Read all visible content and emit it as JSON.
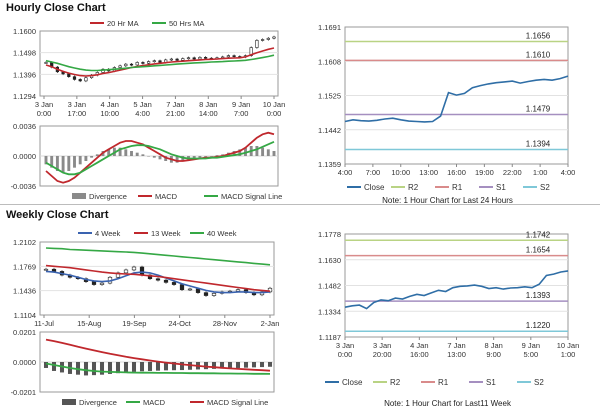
{
  "hourly": {
    "title": "Hourly Close Chart",
    "price_panel": {
      "type": "candlestick",
      "legend": [
        {
          "name": "20 Hr MA",
          "color": "#c0282d"
        },
        {
          "name": "50 Hrs MA",
          "color": "#35a845"
        }
      ],
      "ylim": [
        1.1294,
        1.16
      ],
      "y_ticks": [
        "1.1600",
        "1.1498",
        "1.1396",
        "1.1294"
      ],
      "x_ticks": [
        [
          "3 Jan",
          "0:00"
        ],
        [
          "3 Jan",
          "17:00"
        ],
        [
          "4 Jan",
          "10:00"
        ],
        [
          "5 Jan",
          "4:00"
        ],
        [
          "7 Jan",
          "21:00"
        ],
        [
          "8 Jan",
          "14:00"
        ],
        [
          "9 Jan",
          "7:00"
        ],
        [
          "10 Jan",
          "0:00"
        ]
      ],
      "close": [
        1.1452,
        1.143,
        1.1408,
        1.1398,
        1.1385,
        1.1372,
        1.1365,
        1.138,
        1.1392,
        1.1405,
        1.142,
        1.1412,
        1.1428,
        1.1436,
        1.1444,
        1.144,
        1.1452,
        1.1448,
        1.1456,
        1.146,
        1.1452,
        1.1464,
        1.1468,
        1.1462,
        1.147,
        1.1474,
        1.1468,
        1.1476,
        1.1472,
        1.147,
        1.1474,
        1.1478,
        1.1484,
        1.148,
        1.1478,
        1.1484,
        1.1522,
        1.1556,
        1.156,
        1.1566,
        1.1572
      ],
      "ma20": [
        1.144,
        1.1432,
        1.142,
        1.141,
        1.1402,
        1.1395,
        1.139,
        1.1388,
        1.139,
        1.1394,
        1.14,
        1.1404,
        1.141,
        1.1416,
        1.1422,
        1.1428,
        1.1433,
        1.1437,
        1.1441,
        1.1445,
        1.1448,
        1.1451,
        1.1454,
        1.1456,
        1.1458,
        1.146,
        1.1462,
        1.1464,
        1.1466,
        1.1467,
        1.1468,
        1.147,
        1.1472,
        1.1473,
        1.1474,
        1.1478,
        1.1488,
        1.1498,
        1.1506,
        1.1514,
        1.152
      ],
      "ma50": [
        1.146,
        1.1454,
        1.1448,
        1.144,
        1.1432,
        1.1426,
        1.142,
        1.1416,
        1.1414,
        1.1414,
        1.1416,
        1.1418,
        1.142,
        1.1422,
        1.1425,
        1.1428,
        1.143,
        1.1432,
        1.1434,
        1.1436,
        1.1438,
        1.144,
        1.1442,
        1.1444,
        1.1446,
        1.1448,
        1.145,
        1.1451,
        1.1452,
        1.1454,
        1.1455,
        1.1456,
        1.1458,
        1.1459,
        1.146,
        1.1462,
        1.1466,
        1.147,
        1.1475,
        1.148,
        1.1486
      ]
    },
    "macd_panel": {
      "ylim": [
        -0.0036,
        0.0036
      ],
      "y_ticks": [
        "0.0036",
        "0.0000",
        "-0.0036"
      ],
      "legend": [
        {
          "name": "Divergence",
          "color": "#8a8a8a"
        },
        {
          "name": "MACD",
          "color": "#c0282d"
        },
        {
          "name": "MACD Signal Line",
          "color": "#35a845"
        }
      ],
      "divergence": [
        -0.001,
        -0.0014,
        -0.0018,
        -0.002,
        -0.0018,
        -0.0014,
        -0.001,
        -0.0006,
        -0.0002,
        0.0002,
        0.0006,
        0.0008,
        0.001,
        0.001,
        0.0008,
        0.0006,
        0.0004,
        0.0002,
        0.0,
        -0.0002,
        -0.0004,
        -0.0006,
        -0.0008,
        -0.0008,
        -0.0006,
        -0.0004,
        -0.0003,
        -0.0002,
        -0.0001,
        0.0,
        0.0001,
        0.0002,
        0.0004,
        0.0006,
        0.0008,
        0.001,
        0.0012,
        0.0012,
        0.001,
        0.0008,
        0.0006
      ],
      "macd": [
        -0.0018,
        -0.0024,
        -0.003,
        -0.0032,
        -0.003,
        -0.0026,
        -0.002,
        -0.0014,
        -0.0008,
        -0.0002,
        0.0004,
        0.0008,
        0.0012,
        0.0016,
        0.0018,
        0.0018,
        0.0016,
        0.0014,
        0.001,
        0.0006,
        0.0002,
        -0.0002,
        -0.0004,
        -0.0006,
        -0.0006,
        -0.0005,
        -0.0004,
        -0.0003,
        -0.0002,
        -0.0002,
        -0.0001,
        0.0,
        0.0002,
        0.0004,
        0.0006,
        0.001,
        0.0016,
        0.0022,
        0.0026,
        0.0028,
        0.0026
      ],
      "signal": [
        -0.0008,
        -0.0012,
        -0.0016,
        -0.002,
        -0.0022,
        -0.0022,
        -0.002,
        -0.0016,
        -0.0012,
        -0.0008,
        -0.0004,
        0.0,
        0.0004,
        0.0008,
        0.001,
        0.0012,
        0.0013,
        0.0013,
        0.0012,
        0.001,
        0.0008,
        0.0005,
        0.0002,
        0.0,
        -0.0002,
        -0.0003,
        -0.0003,
        -0.0003,
        -0.0003,
        -0.0002,
        -0.0002,
        -0.0001,
        0.0,
        0.0001,
        0.0002,
        0.0004,
        0.0006,
        0.0008,
        0.0011,
        0.0014,
        0.0017
      ]
    },
    "line_panel": {
      "type": "line",
      "ylim": [
        1.1359,
        1.1691
      ],
      "y_ticks": [
        "1.1691",
        "1.1608",
        "1.1525",
        "1.1442",
        "1.1359"
      ],
      "x_ticks": [
        "4:00",
        "7:00",
        "10:00",
        "13:00",
        "16:00",
        "19:00",
        "22:00",
        "1:00",
        "4:00"
      ],
      "close": [
        1.1462,
        1.1466,
        1.1464,
        1.1463,
        1.1465,
        1.1468,
        1.147,
        1.1466,
        1.1463,
        1.1462,
        1.1461,
        1.1462,
        1.1475,
        1.1532,
        1.1526,
        1.153,
        1.1544,
        1.1549,
        1.1553,
        1.1556,
        1.1558,
        1.156,
        1.1555,
        1.1559,
        1.1562,
        1.1564,
        1.1562,
        1.1566,
        1.1572
      ],
      "levels": [
        {
          "name": "R2",
          "value": 1.1656,
          "label": "1.1656",
          "color": "#b9d384"
        },
        {
          "name": "R1",
          "value": 1.161,
          "label": "1.1610",
          "color": "#d98b8b"
        },
        {
          "name": "S1",
          "value": 1.1479,
          "label": "1.1479",
          "color": "#a58fc0"
        },
        {
          "name": "S2",
          "value": 1.1394,
          "label": "1.1394",
          "color": "#7fc8d8"
        }
      ],
      "legend_close": {
        "name": "Close",
        "color": "#2f6ea6"
      },
      "note": "Note: 1 Hour Chart for Last 24 Hours"
    }
  },
  "weekly": {
    "title": "Weekly Close Chart",
    "price_panel": {
      "type": "candlestick",
      "legend": [
        {
          "name": "4 Week",
          "color": "#3a63b0"
        },
        {
          "name": "13 Week",
          "color": "#c0282d"
        },
        {
          "name": "40 Week",
          "color": "#35a845"
        }
      ],
      "ylim": [
        1.1104,
        1.2102
      ],
      "y_ticks": [
        "1.2102",
        "1.1769",
        "1.1436",
        "1.1104"
      ],
      "x_ticks": [
        "11-Jul",
        "15-Aug",
        "19-Sep",
        "24-Oct",
        "28-Nov",
        "2-Jan"
      ],
      "close": [
        1.173,
        1.17,
        1.165,
        1.162,
        1.16,
        1.156,
        1.152,
        1.154,
        1.162,
        1.168,
        1.172,
        1.176,
        1.165,
        1.16,
        1.158,
        1.155,
        1.152,
        1.145,
        1.146,
        1.141,
        1.137,
        1.14,
        1.142,
        1.143,
        1.145,
        1.141,
        1.138,
        1.142,
        1.147
      ],
      "ma4": [
        1.17,
        1.169,
        1.167,
        1.165,
        1.162,
        1.159,
        1.157,
        1.156,
        1.157,
        1.16,
        1.164,
        1.168,
        1.169,
        1.168,
        1.165,
        1.161,
        1.157,
        1.153,
        1.15,
        1.147,
        1.144,
        1.142,
        1.141,
        1.141,
        1.142,
        1.142,
        1.141,
        1.141,
        1.142
      ],
      "ma13": [
        1.178,
        1.177,
        1.176,
        1.175,
        1.1735,
        1.172,
        1.1705,
        1.169,
        1.168,
        1.167,
        1.1665,
        1.166,
        1.165,
        1.164,
        1.163,
        1.1615,
        1.16,
        1.1585,
        1.157,
        1.1555,
        1.154,
        1.1525,
        1.151,
        1.1495,
        1.148,
        1.1465,
        1.145,
        1.144,
        1.143
      ],
      "ma40": [
        1.202,
        1.2015,
        1.201,
        1.2,
        1.1995,
        1.199,
        1.1985,
        1.198,
        1.1975,
        1.197,
        1.1965,
        1.196,
        1.195,
        1.194,
        1.193,
        1.192,
        1.191,
        1.19,
        1.189,
        1.188,
        1.187,
        1.186,
        1.185,
        1.184,
        1.183,
        1.182,
        1.181,
        1.18,
        1.179
      ]
    },
    "macd_panel": {
      "ylim": [
        -0.0201,
        0.0201
      ],
      "y_ticks": [
        "0.0201",
        "0.0000",
        "-0.0201"
      ],
      "legend": [
        {
          "name": "Divergence",
          "color": "#555555"
        },
        {
          "name": "MACD",
          "color": "#35a845"
        },
        {
          "name": "MACD Signal Line",
          "color": "#c0282d"
        }
      ],
      "divergence": [
        -0.004,
        -0.006,
        -0.007,
        -0.008,
        -0.0085,
        -0.009,
        -0.0088,
        -0.0085,
        -0.008,
        -0.0075,
        -0.007,
        -0.0066,
        -0.0062,
        -0.006,
        -0.0058,
        -0.0056,
        -0.0055,
        -0.0054,
        -0.0052,
        -0.005,
        -0.0048,
        -0.0046,
        -0.0044,
        -0.0042,
        -0.004,
        -0.0038,
        -0.0036,
        -0.0034,
        -0.0032
      ],
      "macd": [
        -0.001,
        -0.002,
        -0.003,
        -0.004,
        -0.0048,
        -0.0055,
        -0.006,
        -0.0064,
        -0.0066,
        -0.0068,
        -0.007,
        -0.0071,
        -0.0072,
        -0.0072,
        -0.0073,
        -0.0073,
        -0.0074,
        -0.0074,
        -0.0075,
        -0.0075,
        -0.0076,
        -0.0076,
        -0.0077,
        -0.0077,
        -0.0078,
        -0.0078,
        -0.0079,
        -0.0079,
        -0.008
      ],
      "signal": [
        0.015,
        0.014,
        0.0128,
        0.0115,
        0.0102,
        0.009,
        0.0078,
        0.0066,
        0.0055,
        0.0045,
        0.0035,
        0.0026,
        0.0018,
        0.001,
        0.0003,
        -0.0004,
        -0.001,
        -0.0016,
        -0.0021,
        -0.0026,
        -0.0031,
        -0.0035,
        -0.0039,
        -0.0043,
        -0.0046,
        -0.0049,
        -0.0052,
        -0.0055,
        -0.0058
      ]
    },
    "line_panel": {
      "type": "line",
      "ylim": [
        1.1187,
        1.1778
      ],
      "y_ticks": [
        "1.1778",
        "1.1630",
        "1.1482",
        "1.1334",
        "1.1187"
      ],
      "x_ticks": [
        [
          "3 Jan",
          "0:00"
        ],
        [
          "3 Jan",
          "20:00"
        ],
        [
          "4 Jan",
          "16:00"
        ],
        [
          "7 Jan",
          "13:00"
        ],
        [
          "8 Jan",
          "9:00"
        ],
        [
          "9 Jan",
          "5:00"
        ],
        [
          "10 Jan",
          "1:00"
        ]
      ],
      "close": [
        1.1358,
        1.1366,
        1.137,
        1.135,
        1.1385,
        1.14,
        1.1395,
        1.141,
        1.1405,
        1.142,
        1.1432,
        1.1425,
        1.144,
        1.1455,
        1.1448,
        1.147,
        1.1478,
        1.148,
        1.1485,
        1.1478,
        1.1465,
        1.147,
        1.1462,
        1.1468,
        1.147,
        1.1475,
        1.147,
        1.149,
        1.154,
        1.1548,
        1.156,
        1.1566
      ],
      "levels": [
        {
          "name": "R2",
          "value": 1.1742,
          "label": "1.1742",
          "color": "#b9d384"
        },
        {
          "name": "R1",
          "value": 1.1654,
          "label": "1.1654",
          "color": "#d98b8b"
        },
        {
          "name": "S1",
          "value": 1.1393,
          "label": "1.1393",
          "color": "#a58fc0"
        },
        {
          "name": "S2",
          "value": 1.122,
          "label": "1.1220",
          "color": "#7fc8d8"
        }
      ],
      "legend_close": {
        "name": "Close",
        "color": "#2f6ea6"
      },
      "note": "Note: 1 Hour Chart for Last11 Week"
    }
  }
}
